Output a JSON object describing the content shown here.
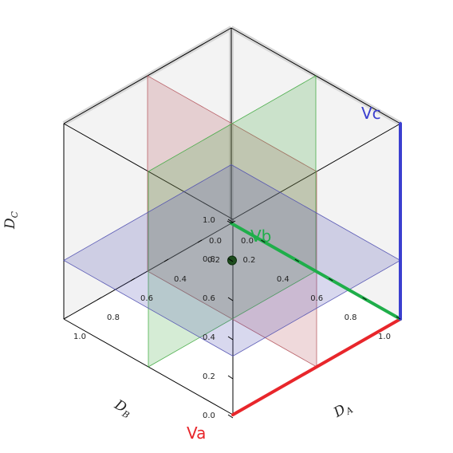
{
  "chart_data": {
    "type": "scatter",
    "projection": "3d-isometric",
    "axes": {
      "x": {
        "label": "D_A",
        "range": [
          0,
          1
        ],
        "ticks": [
          "0.0",
          "0.2",
          "0.4",
          "0.6",
          "0.8",
          "1.0"
        ]
      },
      "y": {
        "label": "D_B",
        "range": [
          0,
          1
        ],
        "ticks": [
          "0.0",
          "0.2",
          "0.4",
          "0.6",
          "0.8",
          "1.0"
        ]
      },
      "z": {
        "label": "D_C",
        "range": [
          0,
          1
        ],
        "ticks": [
          "0.0",
          "0.2",
          "0.4",
          "0.6",
          "0.8",
          "1.0"
        ]
      }
    },
    "axis_labels": {
      "x_main": "D",
      "x_sub": "A",
      "y_main": "D",
      "y_sub": "B",
      "z_main": "D",
      "z_sub": "C"
    },
    "vectors": [
      {
        "name": "Va",
        "color": "#e8262b",
        "end": [
          0,
          0,
          0
        ]
      },
      {
        "name": "Vb",
        "color": "#1fae4a",
        "end": [
          1,
          1,
          0
        ]
      },
      {
        "name": "Vc",
        "color": "#3b3fcf",
        "end": [
          1,
          0,
          1
        ]
      }
    ],
    "center": [
      1,
      0,
      0
    ],
    "planes": [
      {
        "fixed_axis": "x",
        "value": 0.5,
        "color": "#b4545c"
      },
      {
        "fixed_axis": "y",
        "value": 0.5,
        "color": "#3fa83f"
      },
      {
        "fixed_axis": "z",
        "value": 0.3,
        "color": "#4f4fb0"
      }
    ],
    "points": [
      {
        "x": 0.5,
        "y": 0.5,
        "z": 0.3,
        "color": "#1e4d1e"
      }
    ],
    "grid": false,
    "pane_color": "#f2f2f2"
  }
}
